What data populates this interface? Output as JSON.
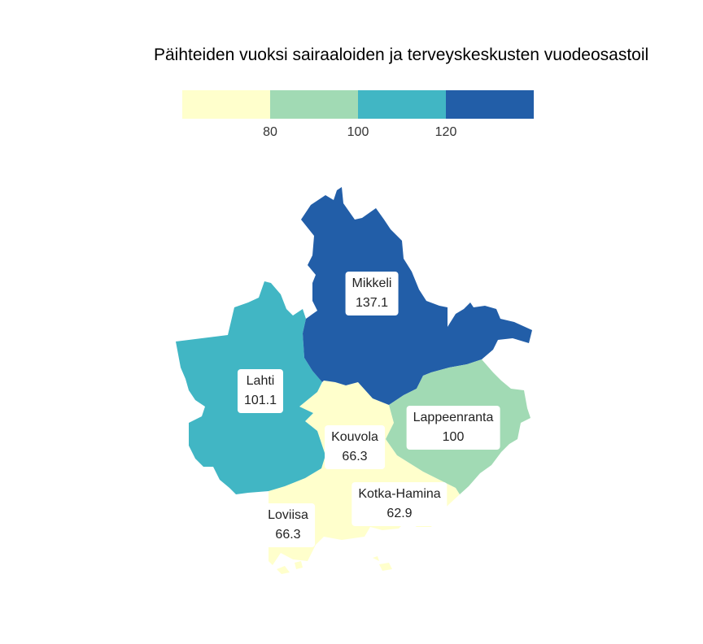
{
  "title": "Päihteiden vuoksi sairaaloiden ja terveyskeskusten vuodeosastoil",
  "legend": {
    "colors": [
      "#ffffcc",
      "#a1dab4",
      "#41b6c4",
      "#225ea8"
    ],
    "ticks": [
      "80",
      "100",
      "120"
    ]
  },
  "regions": [
    {
      "name": "Mikkeli",
      "value": "137.1",
      "color": "#225ea8"
    },
    {
      "name": "Lahti",
      "value": "101.1",
      "color": "#41b6c4"
    },
    {
      "name": "Lappeenranta",
      "value": "100",
      "color": "#a1dab4"
    },
    {
      "name": "Kouvola",
      "value": "66.3",
      "color": "#ffffcc"
    },
    {
      "name": "Kotka-Hamina",
      "value": "62.9",
      "color": "#ffffcc"
    },
    {
      "name": "Loviisa",
      "value": "66.3",
      "color": "#ffffcc"
    }
  ]
}
